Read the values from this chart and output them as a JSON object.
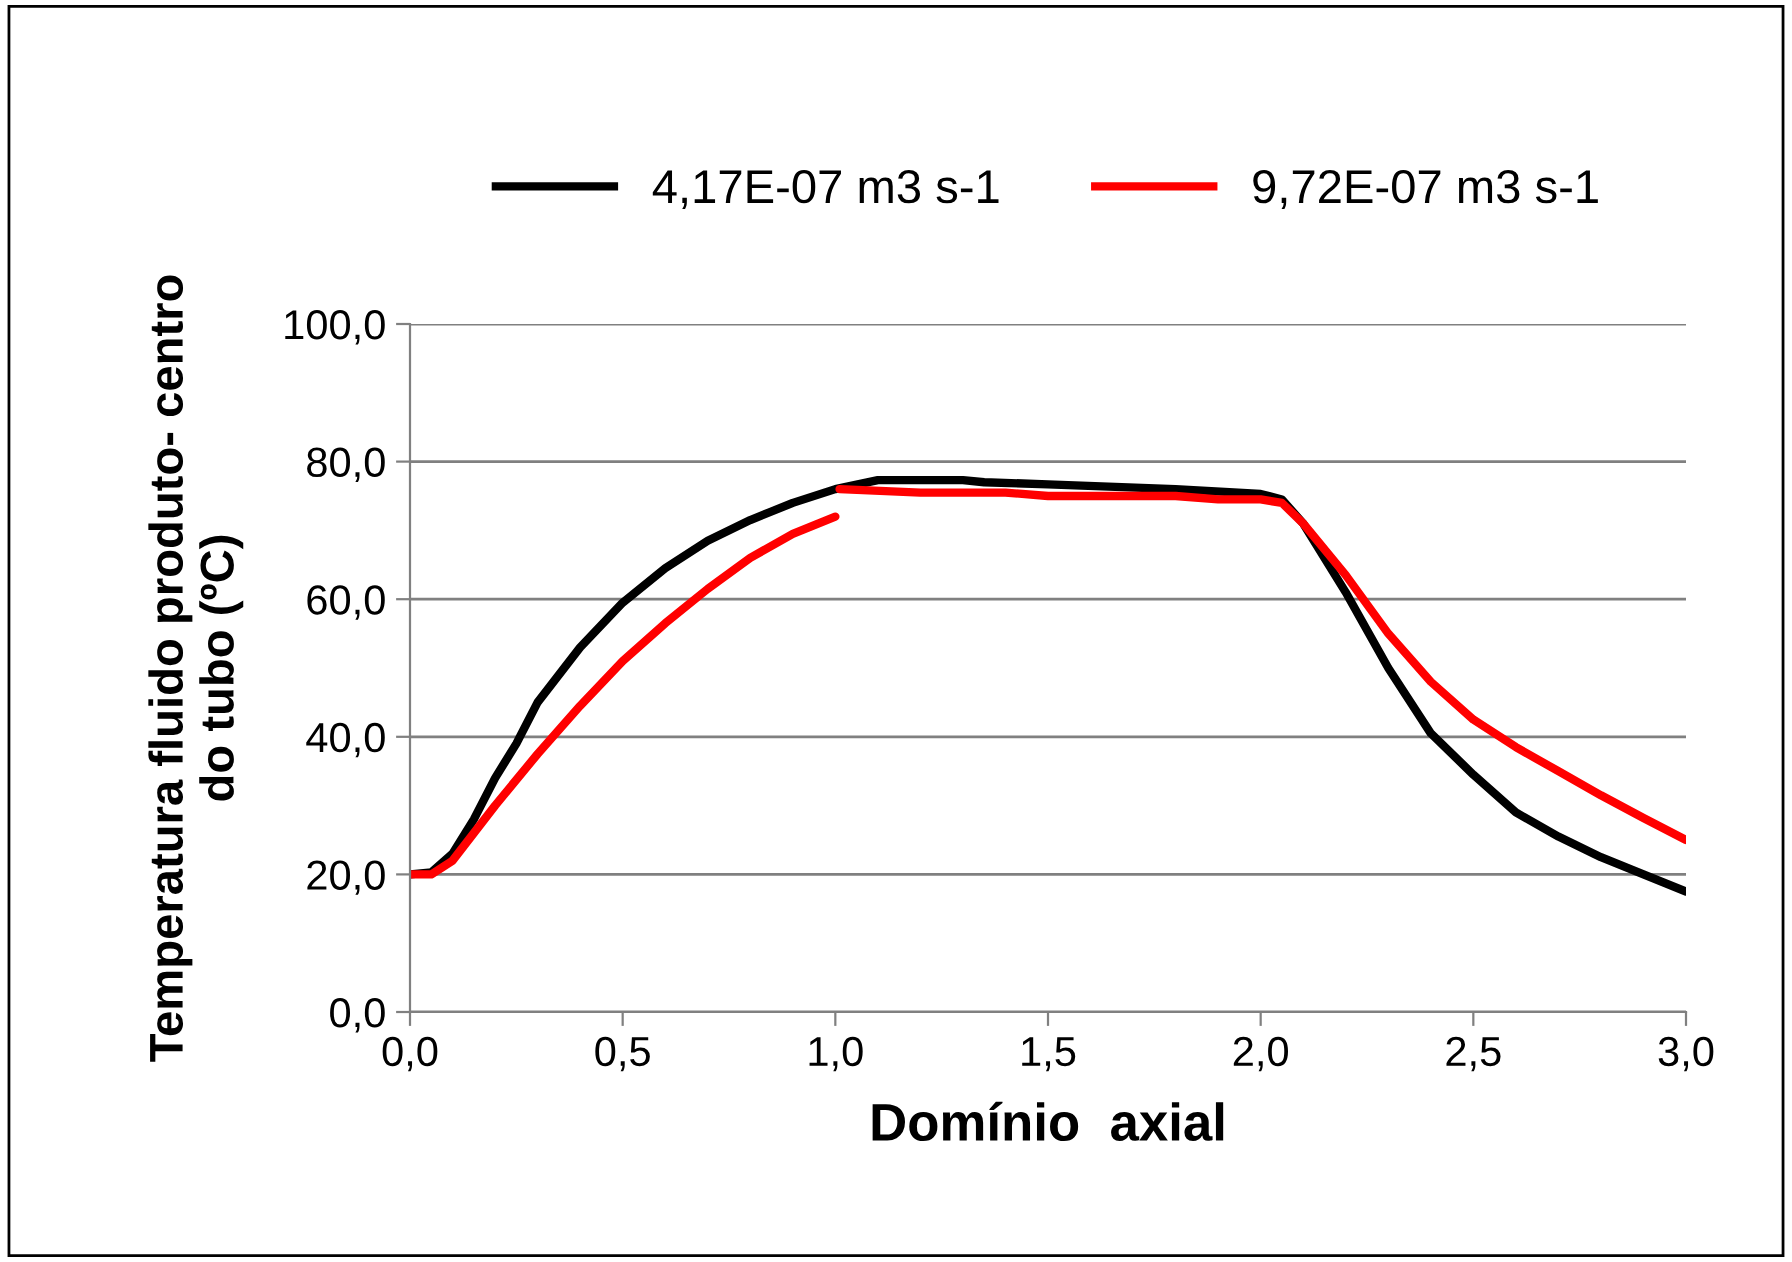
{
  "chart_data": {
    "type": "line",
    "xlabel": "Domínio  axial",
    "ylabel": "Temperatura fluido produto- centro\ndo tubo (ºC)",
    "xlim": [
      0,
      3
    ],
    "xticks": [
      {
        "value": 0,
        "label": "0,0"
      },
      {
        "value": 0.5,
        "label": "0,5"
      },
      {
        "value": 1,
        "label": "1,0"
      },
      {
        "value": 1.5,
        "label": "1,5"
      },
      {
        "value": 2,
        "label": "2,0"
      },
      {
        "value": 2.5,
        "label": "2,5"
      },
      {
        "value": 3,
        "label": "3,0"
      }
    ],
    "ylim": [
      0,
      100
    ],
    "yticks": [
      {
        "value": 0,
        "label": "0,0"
      },
      {
        "value": 20,
        "label": "20,0"
      },
      {
        "value": 40,
        "label": "40,0"
      },
      {
        "value": 60,
        "label": "60,0"
      },
      {
        "value": 80,
        "label": "80,0"
      },
      {
        "value": 100,
        "label": "100,0"
      }
    ],
    "grid": "y",
    "legend": "top",
    "marker": "none",
    "line_style": "solid",
    "series": [
      {
        "name": "4,17E-07 m3 s-1",
        "color": "#000000",
        "x": [
          0,
          0.05,
          0.1,
          0.15,
          0.2,
          0.25,
          0.3,
          0.4,
          0.5,
          0.6,
          0.7,
          0.8,
          0.9,
          1.0,
          1.1,
          1.3,
          1.35,
          1.5,
          1.8,
          2.0,
          2.05,
          2.1,
          2.2,
          2.3,
          2.4,
          2.5,
          2.6,
          2.7,
          2.8,
          2.9,
          3.0
        ],
        "values": [
          20,
          20.3,
          23,
          28,
          34,
          39,
          45,
          53,
          59.5,
          64.5,
          68.5,
          71.5,
          74,
          76,
          77.3,
          77.3,
          77,
          76.7,
          76,
          75.3,
          74.5,
          71,
          61,
          50,
          40.5,
          34.5,
          29,
          25.5,
          22.5,
          20,
          17.5
        ]
      },
      {
        "name": "9,72E-07 m3 s-1",
        "color": "#ff0000",
        "x": [
          0,
          0.05,
          0.1,
          0.15,
          0.2,
          0.3,
          0.4,
          0.5,
          0.6,
          0.7,
          0.8,
          0.9,
          1.0,
          1.005,
          1.01,
          1.2,
          1.4,
          1.5,
          1.8,
          1.9,
          2.0,
          2.05,
          2.1,
          2.2,
          2.3,
          2.4,
          2.5,
          2.6,
          2.7,
          2.8,
          2.9,
          3.0
        ],
        "values": [
          20,
          20,
          22,
          26,
          30,
          37.5,
          44.5,
          51,
          56.5,
          61.5,
          66,
          69.5,
          72,
          null,
          76,
          75.5,
          75.5,
          75,
          75,
          74.5,
          74.5,
          74,
          71,
          63.5,
          55,
          48,
          42.5,
          38.5,
          35,
          31.5,
          28.2,
          25
        ]
      }
    ]
  }
}
